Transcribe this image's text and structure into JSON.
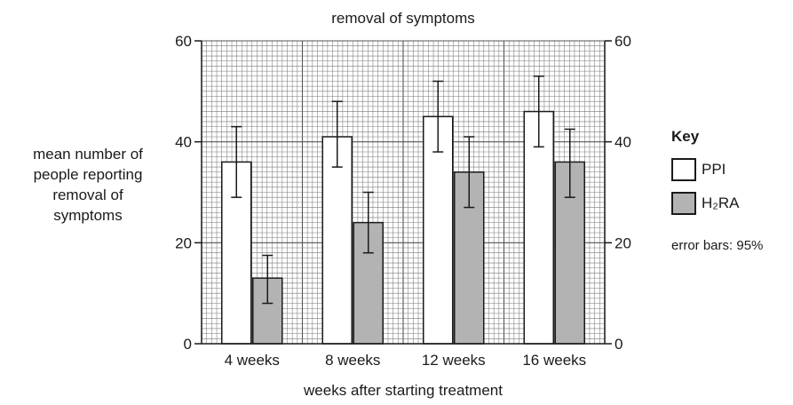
{
  "chart_data": {
    "type": "bar",
    "title": "removal of symptoms",
    "xlabel": "weeks after starting treatment",
    "ylabel_lines": [
      "mean number of",
      "people reporting",
      "removal of",
      "symptoms"
    ],
    "categories": [
      "4 weeks",
      "8 weeks",
      "12 weeks",
      "16 weeks"
    ],
    "series": [
      {
        "name": "PPI",
        "color": "#ffffff",
        "values": [
          36,
          41,
          45,
          46
        ],
        "err_low": [
          29,
          35,
          38,
          39
        ],
        "err_high": [
          43,
          48,
          52,
          53
        ]
      },
      {
        "name": "H₂RA",
        "color": "#b3b3b3",
        "values": [
          13,
          24,
          34,
          36
        ],
        "err_low": [
          8,
          18,
          27,
          29
        ],
        "err_high": [
          17.5,
          30,
          41,
          42.5
        ]
      }
    ],
    "ylim": [
      0,
      60
    ],
    "yticks": [
      0,
      20,
      40,
      60
    ],
    "grid": true,
    "legend_position": "right",
    "key_title": "Key",
    "error_bar_note": "error bars: 95%"
  }
}
